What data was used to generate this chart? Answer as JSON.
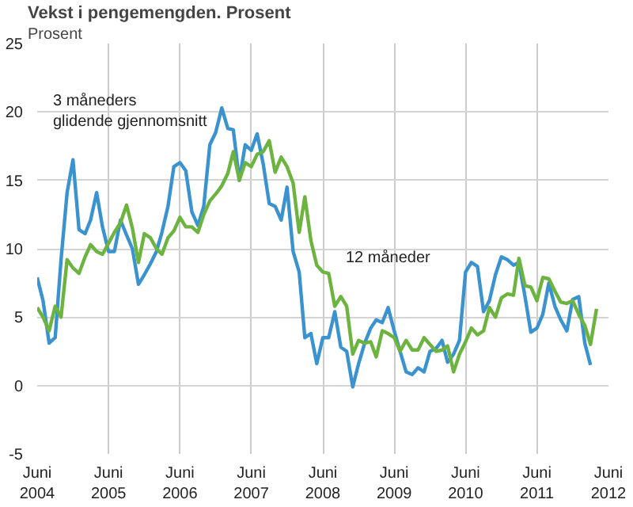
{
  "chart_data": {
    "type": "line",
    "title": "Vekst i pengemengden. Prosent",
    "ylabel": "Prosent",
    "x": [
      "2004-06",
      "2004-07",
      "2004-08",
      "2004-09",
      "2004-10",
      "2004-11",
      "2004-12",
      "2005-01",
      "2005-02",
      "2005-03",
      "2005-04",
      "2005-05",
      "2005-06",
      "2005-07",
      "2005-08",
      "2005-09",
      "2005-10",
      "2005-11",
      "2005-12",
      "2006-01",
      "2006-02",
      "2006-03",
      "2006-04",
      "2006-05",
      "2006-06",
      "2006-07",
      "2006-08",
      "2006-09",
      "2006-10",
      "2006-11",
      "2006-12",
      "2007-01",
      "2007-02",
      "2007-03",
      "2007-04",
      "2007-05",
      "2007-06",
      "2007-07",
      "2007-08",
      "2007-09",
      "2007-10",
      "2007-11",
      "2007-12",
      "2008-01",
      "2008-02",
      "2008-03",
      "2008-04",
      "2008-05",
      "2008-06",
      "2008-07",
      "2008-08",
      "2008-09",
      "2008-10",
      "2008-11",
      "2008-12",
      "2009-01",
      "2009-02",
      "2009-03",
      "2009-04",
      "2009-05",
      "2009-06",
      "2009-07",
      "2009-08",
      "2009-09",
      "2009-10",
      "2009-11",
      "2009-12",
      "2010-01",
      "2010-02",
      "2010-03",
      "2010-04",
      "2010-05",
      "2010-06",
      "2010-07",
      "2010-08",
      "2010-09",
      "2010-10",
      "2010-11",
      "2010-12",
      "2011-01",
      "2011-02",
      "2011-03",
      "2011-04",
      "2011-05",
      "2011-06",
      "2011-07",
      "2011-08",
      "2011-09",
      "2011-10",
      "2011-11",
      "2011-12",
      "2012-01",
      "2012-02",
      "2012-03",
      "2012-04"
    ],
    "series": [
      {
        "name": "3 måneders\nglidende gjennomsnitt",
        "color": "#3a93cf",
        "values": [
          7.9,
          6.2,
          3.1,
          3.5,
          9.2,
          14.1,
          16.5,
          11.4,
          11.1,
          12.1,
          14.1,
          11.6,
          9.8,
          9.8,
          12.1,
          11.0,
          10.0,
          7.4,
          8.1,
          8.9,
          9.8,
          11.2,
          13.1,
          16.0,
          16.3,
          15.7,
          12.7,
          11.7,
          13.1,
          17.6,
          18.5,
          20.3,
          18.8,
          18.7,
          15.0,
          17.6,
          17.2,
          18.4,
          16.2,
          13.3,
          13.1,
          12.1,
          14.5,
          9.8,
          8.3,
          3.5,
          3.8,
          1.6,
          3.5,
          3.5,
          5.4,
          2.8,
          2.5,
          -0.1,
          1.6,
          3.1,
          4.2,
          4.8,
          4.6,
          5.7,
          4.0,
          2.5,
          1.0,
          0.8,
          1.3,
          1.0,
          2.5,
          2.7,
          3.3,
          1.7,
          2.3,
          3.3,
          8.3,
          9.0,
          8.7,
          5.4,
          6.2,
          8.1,
          9.4,
          9.2,
          8.8,
          9.0,
          6.5,
          3.9,
          4.2,
          5.2,
          7.5,
          5.8,
          4.8,
          4.0,
          6.3,
          6.5,
          3.1,
          1.5,
          null
        ]
      },
      {
        "name": "12 måneder",
        "color": "#6cb33f",
        "values": [
          5.7,
          5.0,
          4.0,
          5.8,
          5.0,
          9.2,
          8.6,
          8.2,
          9.4,
          10.3,
          9.8,
          9.6,
          10.4,
          11.2,
          11.9,
          13.2,
          11.5,
          9.0,
          11.1,
          10.8,
          10.0,
          9.6,
          10.8,
          11.3,
          12.3,
          11.6,
          11.6,
          11.2,
          12.5,
          13.5,
          14.0,
          14.6,
          15.5,
          17.1,
          15.0,
          16.3,
          16.0,
          16.9,
          17.1,
          17.9,
          15.6,
          16.7,
          16.0,
          14.8,
          11.2,
          13.8,
          10.6,
          8.8,
          8.3,
          8.2,
          5.8,
          6.5,
          5.8,
          2.3,
          3.3,
          3.1,
          3.2,
          2.1,
          4.0,
          3.8,
          3.5,
          2.5,
          3.3,
          2.6,
          2.6,
          3.5,
          3.0,
          2.5,
          2.6,
          2.9,
          1.0,
          2.3,
          3.2,
          4.2,
          3.7,
          4.0,
          5.7,
          5.0,
          6.4,
          6.7,
          6.6,
          9.3,
          7.3,
          7.2,
          6.2,
          7.9,
          7.8,
          6.9,
          6.1,
          6.0,
          6.2,
          5.2,
          4.4,
          3.0,
          5.6
        ]
      }
    ],
    "xlim": [
      "2004-06",
      "2012-06"
    ],
    "xticks": [
      {
        "value": "2004-06",
        "label": "Juni\n2004"
      },
      {
        "value": "2005-06",
        "label": "Juni\n2005"
      },
      {
        "value": "2006-06",
        "label": "Juni\n2006"
      },
      {
        "value": "2007-06",
        "label": "Juni\n2007"
      },
      {
        "value": "2008-06",
        "label": "Juni\n2008"
      },
      {
        "value": "2009-06",
        "label": "Juni\n2009"
      },
      {
        "value": "2010-06",
        "label": "Juni\n2010"
      },
      {
        "value": "2011-06",
        "label": "Juni\n2011"
      },
      {
        "value": "2012-06",
        "label": "Juni\n2012"
      }
    ],
    "ylim": [
      -5,
      25
    ],
    "yticks": [
      -5,
      0,
      5,
      10,
      15,
      20,
      25
    ],
    "grid": true,
    "legend": false,
    "marker": "none",
    "line_style": "solid"
  }
}
